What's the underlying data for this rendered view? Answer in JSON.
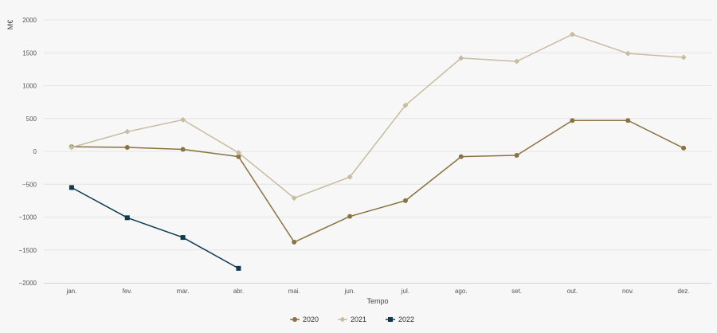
{
  "chart_data": {
    "type": "line",
    "title": "",
    "xlabel": "Tempo",
    "ylabel": "M€",
    "ylim": [
      -2000,
      2000
    ],
    "yticks": [
      -2000,
      -1500,
      -1000,
      -500,
      0,
      500,
      1000,
      1500,
      2000
    ],
    "categories": [
      "jan.",
      "fev.",
      "mar.",
      "abr.",
      "mai.",
      "jun.",
      "jul.",
      "ago.",
      "set.",
      "out.",
      "nov.",
      "dez."
    ],
    "grid": true,
    "legend_position": "bottom-center",
    "series": [
      {
        "name": "2020",
        "color": "#8a7340",
        "marker": "circle",
        "values": [
          70,
          60,
          30,
          -80,
          -1380,
          -990,
          -750,
          -80,
          -60,
          470,
          470,
          50
        ]
      },
      {
        "name": "2021",
        "color": "#c9bba0",
        "marker": "diamond",
        "values": [
          60,
          300,
          480,
          -20,
          -710,
          -390,
          700,
          1420,
          1370,
          1780,
          1490,
          1430
        ]
      },
      {
        "name": "2022",
        "color": "#0e3a52",
        "marker": "square",
        "values": [
          -550,
          -1010,
          -1310,
          -1780,
          null,
          null,
          null,
          null,
          null,
          null,
          null,
          null
        ]
      }
    ]
  }
}
